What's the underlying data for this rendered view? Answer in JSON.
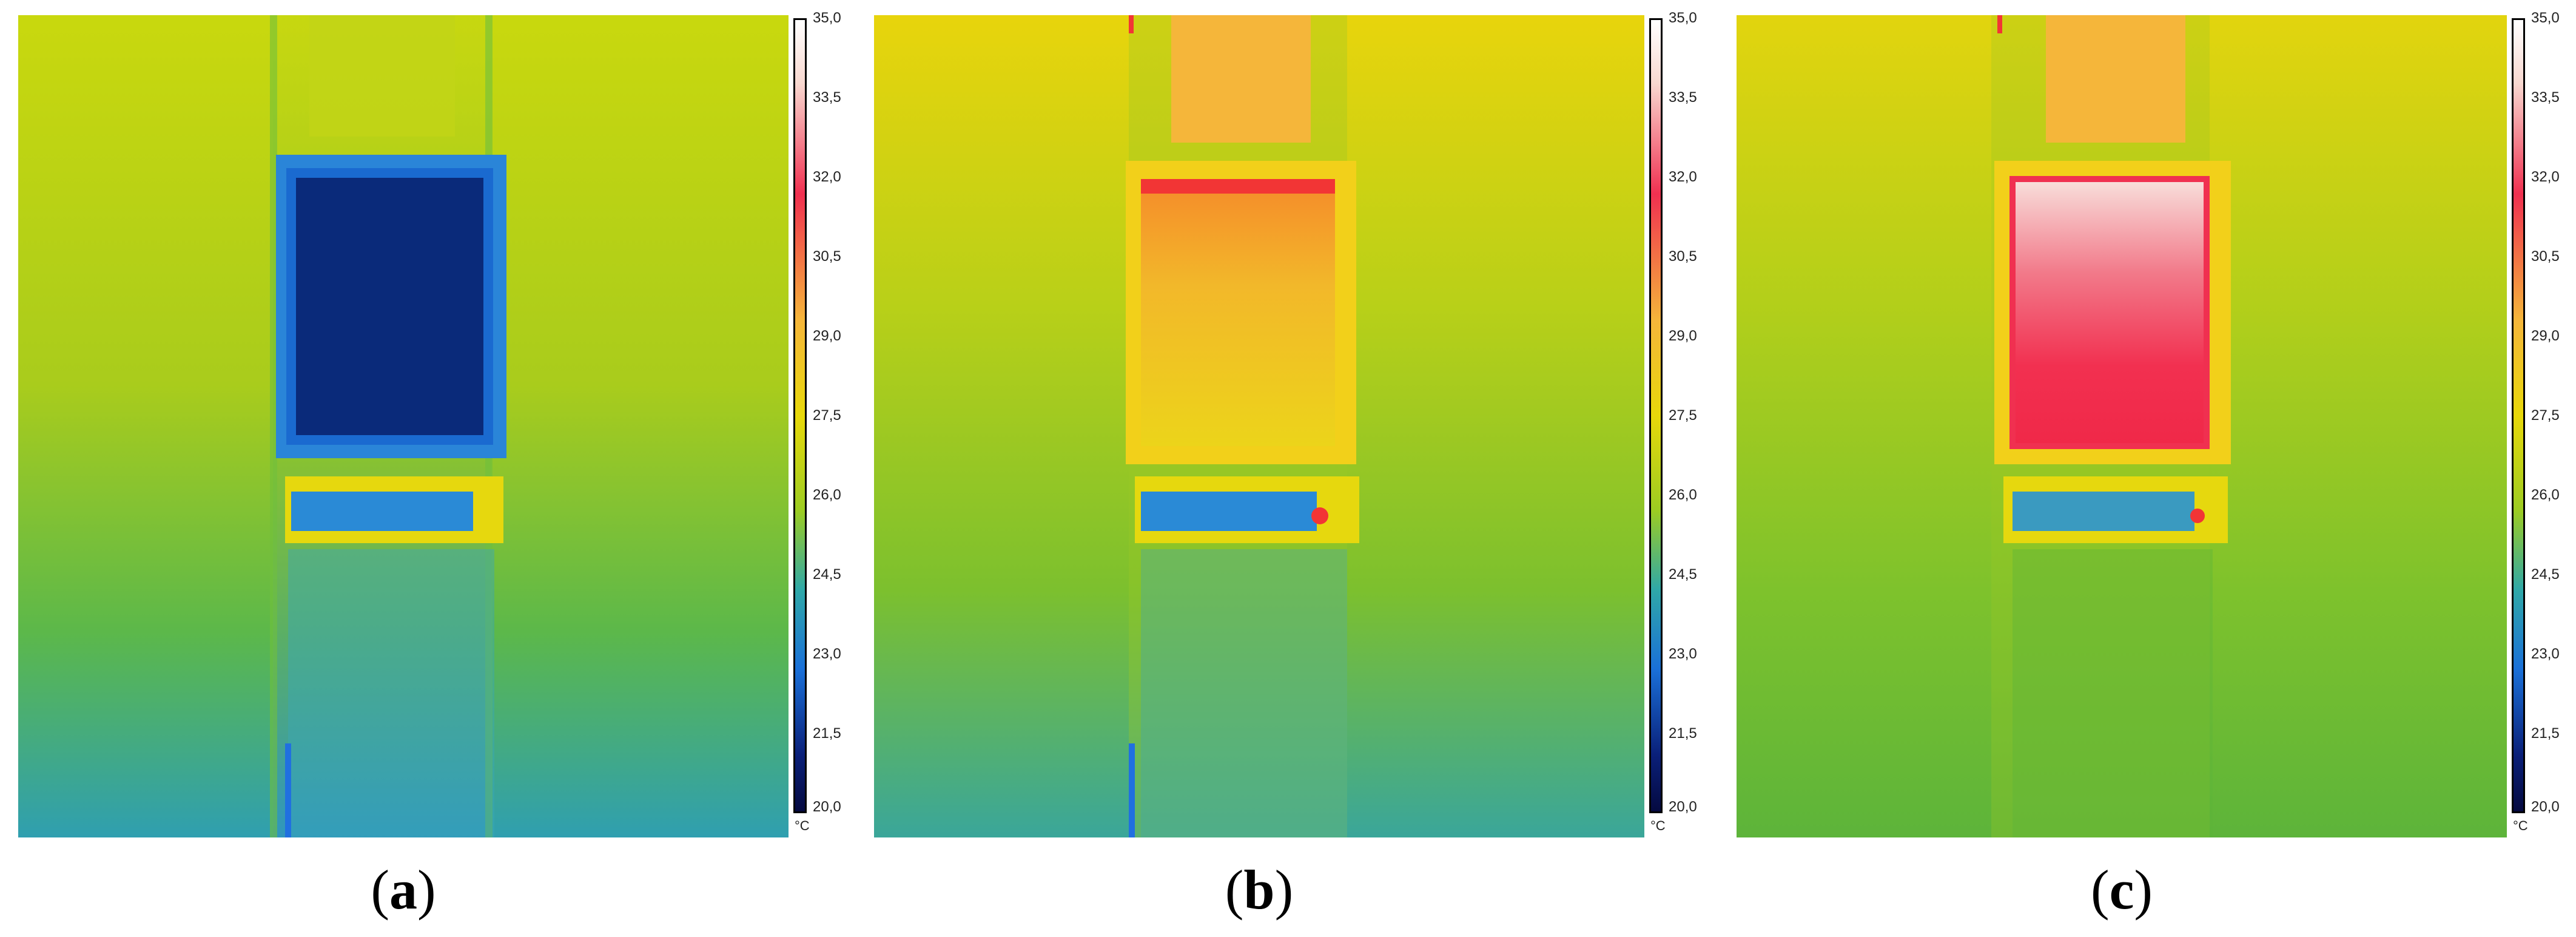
{
  "scale": {
    "ticks": [
      "35,0",
      "33,5",
      "32,0",
      "30,5",
      "29,0",
      "27,5",
      "26,0",
      "24,5",
      "23,0",
      "21,5",
      "20,0"
    ],
    "unit": "°C"
  },
  "panels": [
    {
      "id": "a",
      "caption_open": "(",
      "caption_letter": "a",
      "caption_close": ")",
      "window_state": "cold",
      "colors": {
        "window": "#0a2a7a",
        "window_edge": "#1a6ad0",
        "upper_frame": "#c8d70f",
        "rim": "#2a85d8"
      }
    },
    {
      "id": "b",
      "caption_open": "(",
      "caption_letter": "b",
      "caption_close": ")",
      "window_state": "warm",
      "colors": {
        "window": "#f2c020",
        "window_edge": "#f23535",
        "upper_frame": "#f5b63a",
        "rim": "#f2d01a"
      }
    },
    {
      "id": "c",
      "caption_open": "(",
      "caption_letter": "c",
      "caption_close": ")",
      "window_state": "hot",
      "colors": {
        "window": "#f23050",
        "window_edge": "#f8d8d8",
        "upper_frame": "#f5b63a",
        "rim": "#f2d01a"
      }
    }
  ]
}
